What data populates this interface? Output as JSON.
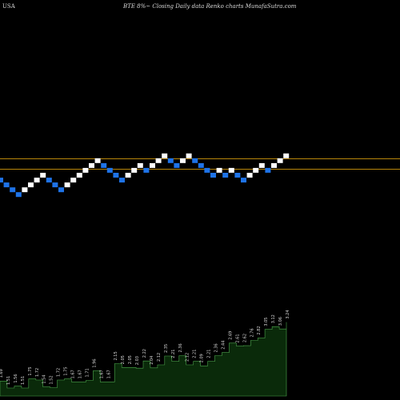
{
  "header": {
    "market": "USA",
    "title": "BTE 8%~  Closing Daily data  Renko  charts MunafaSutra.com"
  },
  "colors": {
    "background": "#000000",
    "up_brick": "#ffffff",
    "down_brick": "#1e73e8",
    "reference_line": "#b8860b",
    "volume_fill": "#0a2a0a",
    "volume_outline": "#4ca64c",
    "volume_label": "#d9d9d9"
  },
  "chart_data": [
    {
      "type": "renko",
      "series": [
        {
          "directions": [
            "down",
            "down",
            "down",
            "down",
            "up",
            "up",
            "up",
            "up",
            "down",
            "down",
            "down",
            "up",
            "up",
            "up",
            "up",
            "up",
            "up",
            "down",
            "down",
            "down",
            "down",
            "up",
            "up",
            "up",
            "down",
            "up",
            "up",
            "up",
            "down",
            "down",
            "up",
            "up",
            "down",
            "down",
            "down",
            "down",
            "up",
            "down",
            "up",
            "down",
            "down",
            "up",
            "up",
            "up",
            "down",
            "up",
            "up",
            "up"
          ]
        }
      ],
      "reference_lines": [
        {
          "level": "upper"
        },
        {
          "level": "lower"
        }
      ]
    },
    {
      "type": "area",
      "labels": [
        "1.69",
        "1.51",
        "1.56",
        "1.51",
        "1.75",
        "1.72",
        "1.54",
        "1.52",
        "1.72",
        "1.75",
        "1.67",
        "1.67",
        "1.71",
        "1.96",
        "1.67",
        "1.67",
        "2.15",
        "2.05",
        "2.05",
        "2.03",
        "2.22",
        "2.04",
        "2.12",
        "2.35",
        "2.21",
        "2.36",
        "2.12",
        "2.21",
        "2.09",
        "2.21",
        "2.36",
        "2.44",
        "2.69",
        "2.61",
        "2.62",
        "2.76",
        "2.82",
        "3.05",
        "3.12",
        "3.06",
        "3.24"
      ],
      "values": [
        1.69,
        1.51,
        1.56,
        1.51,
        1.75,
        1.72,
        1.54,
        1.52,
        1.72,
        1.75,
        1.67,
        1.67,
        1.71,
        1.96,
        1.67,
        1.67,
        2.15,
        2.05,
        2.05,
        2.03,
        2.22,
        2.04,
        2.12,
        2.35,
        2.21,
        2.36,
        2.12,
        2.21,
        2.09,
        2.21,
        2.36,
        2.44,
        2.69,
        2.61,
        2.62,
        2.76,
        2.82,
        3.05,
        3.12,
        3.06,
        3.24
      ]
    }
  ]
}
